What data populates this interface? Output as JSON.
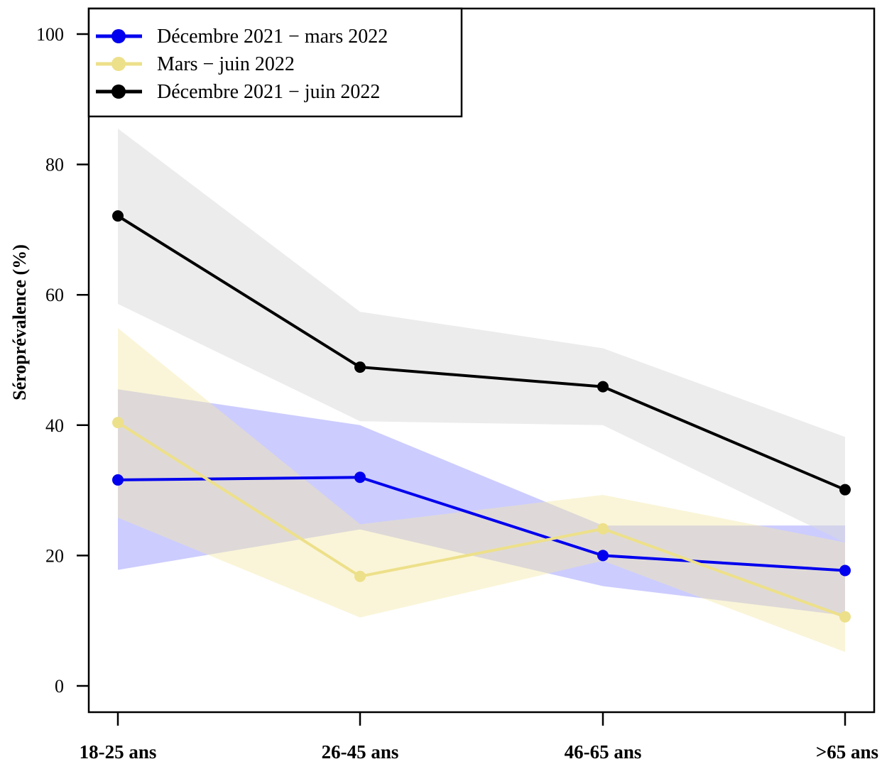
{
  "chart_data": {
    "type": "line",
    "categories": [
      "18-25 ans",
      "26-45 ans",
      "46-65 ans",
      ">65 ans"
    ],
    "ylabel": "Séroprévalence (%)",
    "xlabel": "",
    "ylim": [
      0,
      100
    ],
    "yticks": [
      0,
      20,
      40,
      60,
      80,
      100
    ],
    "grid": false,
    "legend_position": "top-left",
    "series": [
      {
        "name": "Décembre 2021 − mars 2022",
        "color": "#0000ee",
        "band_color": "#9999ff",
        "values": [
          31.6,
          32.0,
          20.0,
          17.7
        ],
        "lower": [
          17.8,
          24.0,
          15.3,
          10.8
        ],
        "upper": [
          45.5,
          40.0,
          24.6,
          24.6
        ]
      },
      {
        "name": "Mars − juin 2022",
        "color": "#ede08a",
        "band_color": "#f3e8a8",
        "values": [
          40.4,
          16.8,
          24.1,
          10.6
        ],
        "lower": [
          25.8,
          10.5,
          19.2,
          5.2
        ],
        "upper": [
          54.9,
          24.8,
          29.3,
          22.0
        ]
      },
      {
        "name": "Décembre 2021 − juin 2022",
        "color": "#000000",
        "band_color": "#d9d9d9",
        "values": [
          72.1,
          48.9,
          45.9,
          30.1
        ],
        "lower": [
          58.6,
          40.6,
          40.0,
          22.0
        ],
        "upper": [
          85.5,
          57.4,
          51.8,
          38.2
        ]
      }
    ]
  }
}
